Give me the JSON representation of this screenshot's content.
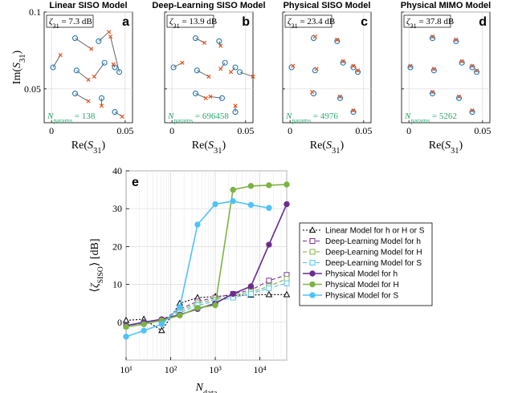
{
  "chart_data": [
    {
      "type": "scatter",
      "panel": "a",
      "title": "Linear SISO Model",
      "annotation": "ζ31 = 7.3 dB",
      "nparams_label": "Nparams = 138",
      "xlabel": "Re(S31)",
      "ylabel": "Im(S31)",
      "xlim": [
        -0.005,
        0.055
      ],
      "ylim": [
        0.028,
        0.1
      ],
      "xticks": [
        "0",
        "0.05"
      ],
      "yticks": [
        "0.05",
        "0.1"
      ],
      "true_points": [
        [
          0.001,
          0.064
        ],
        [
          0.016,
          0.083
        ],
        [
          0.032,
          0.081
        ],
        [
          0.017,
          0.062
        ],
        [
          0.036,
          0.067
        ],
        [
          0.043,
          0.064
        ],
        [
          0.046,
          0.061
        ],
        [
          0.016,
          0.047
        ],
        [
          0.034,
          0.044
        ],
        [
          0.043,
          0.035
        ]
      ],
      "pred_points": [
        [
          0.006,
          0.072
        ],
        [
          0.027,
          0.076
        ],
        [
          0.039,
          0.087
        ],
        [
          0.025,
          0.056
        ],
        [
          0.029,
          0.058
        ],
        [
          0.042,
          0.066
        ],
        [
          0.04,
          0.084
        ],
        [
          0.025,
          0.042
        ],
        [
          0.034,
          0.039
        ],
        [
          0.048,
          0.032
        ]
      ]
    },
    {
      "type": "scatter",
      "panel": "b",
      "title": "Deep-Learning SISO Model",
      "annotation": "ζ31 = 13.9 dB",
      "nparams_label": "Nparams = 696458",
      "xlabel": "Re(S31)",
      "ylabel": "",
      "xlim": [
        -0.005,
        0.055
      ],
      "ylim": [
        0.028,
        0.1
      ],
      "xticks": [
        "0",
        "0.05"
      ],
      "yticks": [],
      "true_points": [
        [
          0.001,
          0.064
        ],
        [
          0.016,
          0.083
        ],
        [
          0.032,
          0.081
        ],
        [
          0.017,
          0.062
        ],
        [
          0.036,
          0.067
        ],
        [
          0.043,
          0.064
        ],
        [
          0.046,
          0.061
        ],
        [
          0.016,
          0.047
        ],
        [
          0.034,
          0.044
        ],
        [
          0.043,
          0.035
        ]
      ],
      "pred_points": [
        [
          0.007,
          0.067
        ],
        [
          0.022,
          0.08
        ],
        [
          0.033,
          0.078
        ],
        [
          0.025,
          0.058
        ],
        [
          0.033,
          0.063
        ],
        [
          0.04,
          0.061
        ],
        [
          0.055,
          0.058
        ],
        [
          0.023,
          0.044
        ],
        [
          0.026,
          0.045
        ],
        [
          0.043,
          0.039
        ]
      ]
    },
    {
      "type": "scatter",
      "panel": "c",
      "title": "Physical SISO Model",
      "annotation": "ζ31 = 23.4 dB",
      "nparams_label": "Nparams = 4976",
      "xlabel": "Re(S31)",
      "ylabel": "",
      "xlim": [
        -0.005,
        0.055
      ],
      "ylim": [
        0.028,
        0.1
      ],
      "xticks": [
        "0",
        "0.05"
      ],
      "yticks": [],
      "true_points": [
        [
          0.001,
          0.064
        ],
        [
          0.016,
          0.083
        ],
        [
          0.032,
          0.081
        ],
        [
          0.017,
          0.062
        ],
        [
          0.036,
          0.067
        ],
        [
          0.043,
          0.064
        ],
        [
          0.046,
          0.061
        ],
        [
          0.016,
          0.047
        ],
        [
          0.034,
          0.044
        ],
        [
          0.043,
          0.035
        ]
      ],
      "pred_points": [
        [
          0.002,
          0.065
        ],
        [
          0.017,
          0.084
        ],
        [
          0.032,
          0.082
        ],
        [
          0.018,
          0.063
        ],
        [
          0.036,
          0.068
        ],
        [
          0.043,
          0.065
        ],
        [
          0.046,
          0.062
        ],
        [
          0.015,
          0.048
        ],
        [
          0.034,
          0.045
        ],
        [
          0.043,
          0.036
        ]
      ]
    },
    {
      "type": "scatter",
      "panel": "d",
      "title": "Physical MIMO Model",
      "annotation": "ζ31 = 37.8 dB",
      "nparams_label": "Nparams = 5262",
      "xlabel": "Re(S31)",
      "ylabel": "",
      "xlim": [
        -0.005,
        0.055
      ],
      "ylim": [
        0.028,
        0.1
      ],
      "xticks": [
        "0",
        "0.05"
      ],
      "yticks": [],
      "true_points": [
        [
          0.001,
          0.064
        ],
        [
          0.016,
          0.083
        ],
        [
          0.032,
          0.081
        ],
        [
          0.017,
          0.062
        ],
        [
          0.036,
          0.067
        ],
        [
          0.043,
          0.064
        ],
        [
          0.046,
          0.061
        ],
        [
          0.016,
          0.047
        ],
        [
          0.034,
          0.044
        ],
        [
          0.043,
          0.035
        ]
      ],
      "pred_points": [
        [
          0.001,
          0.065
        ],
        [
          0.016,
          0.084
        ],
        [
          0.032,
          0.082
        ],
        [
          0.017,
          0.063
        ],
        [
          0.036,
          0.068
        ],
        [
          0.043,
          0.065
        ],
        [
          0.046,
          0.062
        ],
        [
          0.016,
          0.048
        ],
        [
          0.034,
          0.045
        ],
        [
          0.043,
          0.036
        ]
      ]
    },
    {
      "type": "line",
      "panel": "e",
      "xscale": "log",
      "xlabel": "Ndata",
      "ylabel": "⟨ζSISO⟩ [dB]",
      "xlim": [
        10,
        40000
      ],
      "ylim": [
        -10,
        40
      ],
      "xticks": [
        "10¹",
        "10²",
        "10³",
        "10⁴"
      ],
      "yticks": [
        "0",
        "10",
        "20",
        "30",
        "40"
      ],
      "series": [
        {
          "name": "Linear Model for h or H or S",
          "color": "#000000",
          "dash": "2,2",
          "marker": "triangle",
          "x": [
            10,
            25,
            63,
            160,
            400,
            1000,
            2500,
            6300,
            16000,
            40000
          ],
          "y": [
            0.5,
            0.8,
            -2.2,
            5.0,
            6.5,
            6.8,
            7.1,
            7.2,
            7.3,
            7.3
          ]
        },
        {
          "name": "Deep-Learning Model for h",
          "color": "#7b3294",
          "dash": "5,3",
          "marker": "square",
          "x": [
            10,
            25,
            63,
            160,
            400,
            1000,
            2500,
            6300,
            16000,
            40000
          ],
          "y": [
            -0.8,
            -0.1,
            0.5,
            3.5,
            5.5,
            6.5,
            7.5,
            8.5,
            11.0,
            12.5
          ]
        },
        {
          "name": "Deep-Learning Model for H",
          "color": "#7cb342",
          "dash": "5,3",
          "marker": "square",
          "x": [
            10,
            25,
            63,
            160,
            400,
            1000,
            2500,
            6300,
            16000,
            40000
          ],
          "y": [
            -0.9,
            0.0,
            0.4,
            3.0,
            5.0,
            6.0,
            7.0,
            8.0,
            9.5,
            11.5
          ]
        },
        {
          "name": "Deep-Learning Model for S",
          "color": "#4fc3f7",
          "dash": "5,3",
          "marker": "square",
          "x": [
            10,
            25,
            63,
            160,
            400,
            1000,
            2500,
            6300,
            16000,
            40000
          ],
          "y": [
            -1.0,
            -0.2,
            0.3,
            2.5,
            4.5,
            5.5,
            6.5,
            7.5,
            9.0,
            10.3
          ]
        },
        {
          "name": "Physical Model for h",
          "color": "#6a2c8f",
          "dash": "",
          "marker": "circle",
          "x": [
            10,
            25,
            63,
            160,
            400,
            1000,
            2500,
            6300,
            16000,
            40000
          ],
          "y": [
            -0.9,
            0.0,
            0.8,
            2.0,
            3.5,
            5.0,
            7.5,
            9.5,
            20.5,
            31.2
          ]
        },
        {
          "name": "Physical Model for H",
          "color": "#7cb342",
          "dash": "",
          "marker": "circle",
          "x": [
            10,
            25,
            63,
            160,
            400,
            1000,
            2500,
            6300,
            16000,
            40000
          ],
          "y": [
            -1.2,
            -0.5,
            0.5,
            1.8,
            3.8,
            4.5,
            35.0,
            36.0,
            36.2,
            36.4
          ]
        },
        {
          "name": "Physical Model for S",
          "color": "#4fc3f7",
          "dash": "",
          "marker": "circle",
          "x": [
            10,
            25,
            63,
            160,
            400,
            1000,
            2500,
            6300,
            16000
          ],
          "y": [
            -3.8,
            -2.2,
            -0.5,
            4.0,
            25.8,
            31.2,
            32.0,
            31.0,
            30.2
          ]
        }
      ]
    }
  ]
}
